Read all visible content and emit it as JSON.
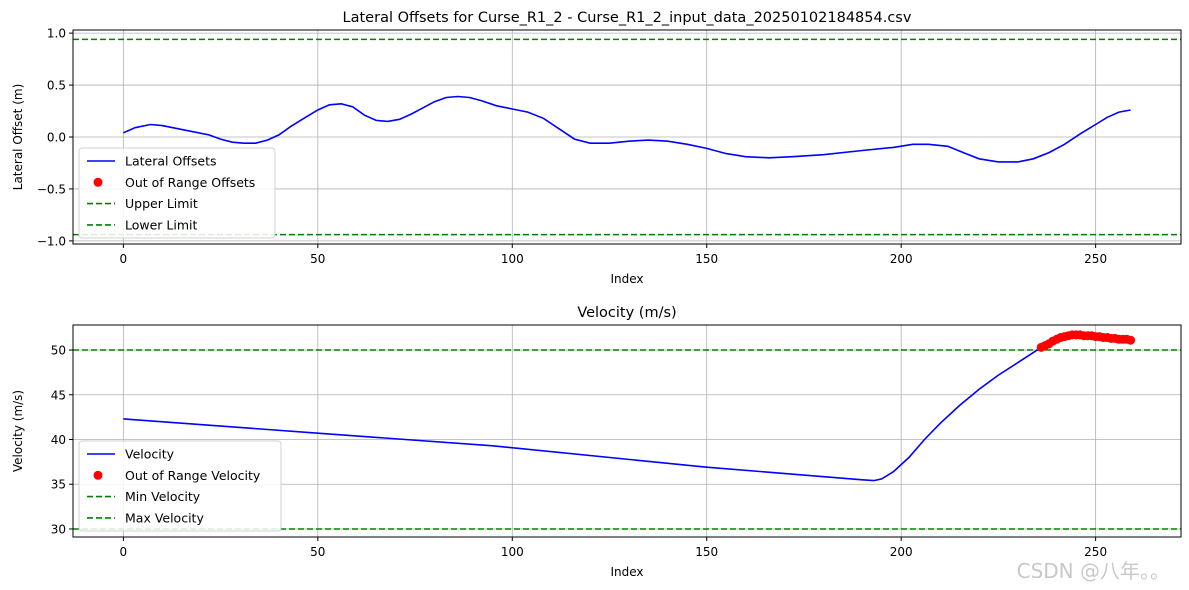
{
  "watermark": "CSDN @八年。。",
  "chart_data": [
    {
      "type": "line",
      "title": "Lateral Offsets for Curse_R1_2 - Curse_R1_2_input_data_20250102184854.csv",
      "xlabel": "Index",
      "ylabel": "Lateral Offset (m)",
      "xlim": [
        -12.95,
        271.95
      ],
      "ylim": [
        -1.03,
        1.03
      ],
      "xticks": [
        0,
        50,
        100,
        150,
        200,
        250
      ],
      "yticks": [
        -1.0,
        -0.5,
        0.0,
        0.5,
        1.0
      ],
      "ytick_labels": [
        "−1.0",
        "−0.5",
        "0.0",
        "0.5",
        "1.0"
      ],
      "grid": true,
      "legend_position": "lower-left",
      "legend": [
        {
          "label": "Lateral Offsets",
          "kind": "line",
          "color": "#0000ff"
        },
        {
          "label": "Out of Range Offsets",
          "kind": "marker",
          "color": "#ff0000"
        },
        {
          "label": "Upper Limit",
          "kind": "dashed",
          "color": "#008000"
        },
        {
          "label": "Lower Limit",
          "kind": "dashed",
          "color": "#008000"
        }
      ],
      "hlines": [
        0.94,
        -0.94
      ],
      "series": [
        {
          "name": "Lateral Offsets",
          "color": "#0000ff",
          "x": [
            0,
            3,
            7,
            10,
            14,
            18,
            22,
            25,
            28,
            31,
            34,
            37,
            40,
            43,
            46,
            50,
            53,
            56,
            59,
            62,
            65,
            68,
            71,
            74,
            77,
            80,
            83,
            86,
            89,
            92,
            96,
            100,
            104,
            108,
            112,
            116,
            120,
            125,
            130,
            135,
            140,
            145,
            150,
            155,
            160,
            166,
            172,
            180,
            190,
            198,
            203,
            207,
            212,
            216,
            220,
            225,
            230,
            234,
            238,
            242,
            246,
            250,
            253,
            256,
            259
          ],
          "y": [
            0.04,
            0.09,
            0.12,
            0.11,
            0.08,
            0.05,
            0.02,
            -0.02,
            -0.05,
            -0.06,
            -0.06,
            -0.03,
            0.02,
            0.1,
            0.17,
            0.26,
            0.31,
            0.32,
            0.29,
            0.21,
            0.16,
            0.15,
            0.17,
            0.22,
            0.28,
            0.34,
            0.38,
            0.39,
            0.38,
            0.35,
            0.3,
            0.27,
            0.24,
            0.18,
            0.08,
            -0.02,
            -0.06,
            -0.06,
            -0.04,
            -0.03,
            -0.04,
            -0.07,
            -0.11,
            -0.16,
            -0.19,
            -0.2,
            -0.19,
            -0.17,
            -0.13,
            -0.1,
            -0.07,
            -0.07,
            -0.09,
            -0.15,
            -0.21,
            -0.24,
            -0.24,
            -0.21,
            -0.15,
            -0.07,
            0.03,
            0.12,
            0.19,
            0.24,
            0.26
          ]
        }
      ],
      "out_of_range": {
        "name": "Out of Range Offsets",
        "x": [],
        "y": []
      }
    },
    {
      "type": "line",
      "title": "Velocity (m/s)",
      "xlabel": "Index",
      "ylabel": "Velocity (m/s)",
      "xlim": [
        -12.95,
        271.95
      ],
      "ylim": [
        29.1,
        52.8
      ],
      "xticks": [
        0,
        50,
        100,
        150,
        200,
        250
      ],
      "yticks": [
        30,
        35,
        40,
        45,
        50
      ],
      "ytick_labels": [
        "30",
        "35",
        "40",
        "45",
        "50"
      ],
      "grid": true,
      "legend_position": "lower-left",
      "legend": [
        {
          "label": "Velocity",
          "kind": "line",
          "color": "#0000ff"
        },
        {
          "label": "Out of Range Velocity",
          "kind": "marker",
          "color": "#ff0000"
        },
        {
          "label": "Min Velocity",
          "kind": "dashed",
          "color": "#008000"
        },
        {
          "label": "Max Velocity",
          "kind": "dashed",
          "color": "#008000"
        }
      ],
      "hlines": [
        50,
        30
      ],
      "series": [
        {
          "name": "Velocity",
          "color": "#0000ff",
          "x": [
            0,
            50,
            95,
            150,
            190,
            193,
            195,
            198,
            202,
            206,
            210,
            215,
            220,
            225,
            230,
            235,
            238,
            242,
            246,
            250,
            254,
            259
          ],
          "y": [
            42.3,
            40.7,
            39.3,
            36.9,
            35.5,
            35.4,
            35.6,
            36.4,
            38.0,
            40.0,
            41.8,
            43.8,
            45.6,
            47.2,
            48.6,
            50.0,
            50.7,
            51.5,
            51.7,
            51.5,
            51.3,
            51.1
          ]
        }
      ],
      "out_of_range": {
        "name": "Out of Range Velocity",
        "x": [
          236,
          237,
          238,
          239,
          240,
          241,
          242,
          243,
          244,
          245,
          246,
          247,
          248,
          249,
          250,
          251,
          252,
          253,
          254,
          255,
          256,
          257,
          258,
          259
        ],
        "y": [
          50.3,
          50.5,
          50.7,
          51.0,
          51.2,
          51.4,
          51.5,
          51.6,
          51.7,
          51.7,
          51.7,
          51.6,
          51.6,
          51.6,
          51.5,
          51.5,
          51.4,
          51.4,
          51.3,
          51.3,
          51.2,
          51.2,
          51.2,
          51.1
        ]
      }
    }
  ]
}
